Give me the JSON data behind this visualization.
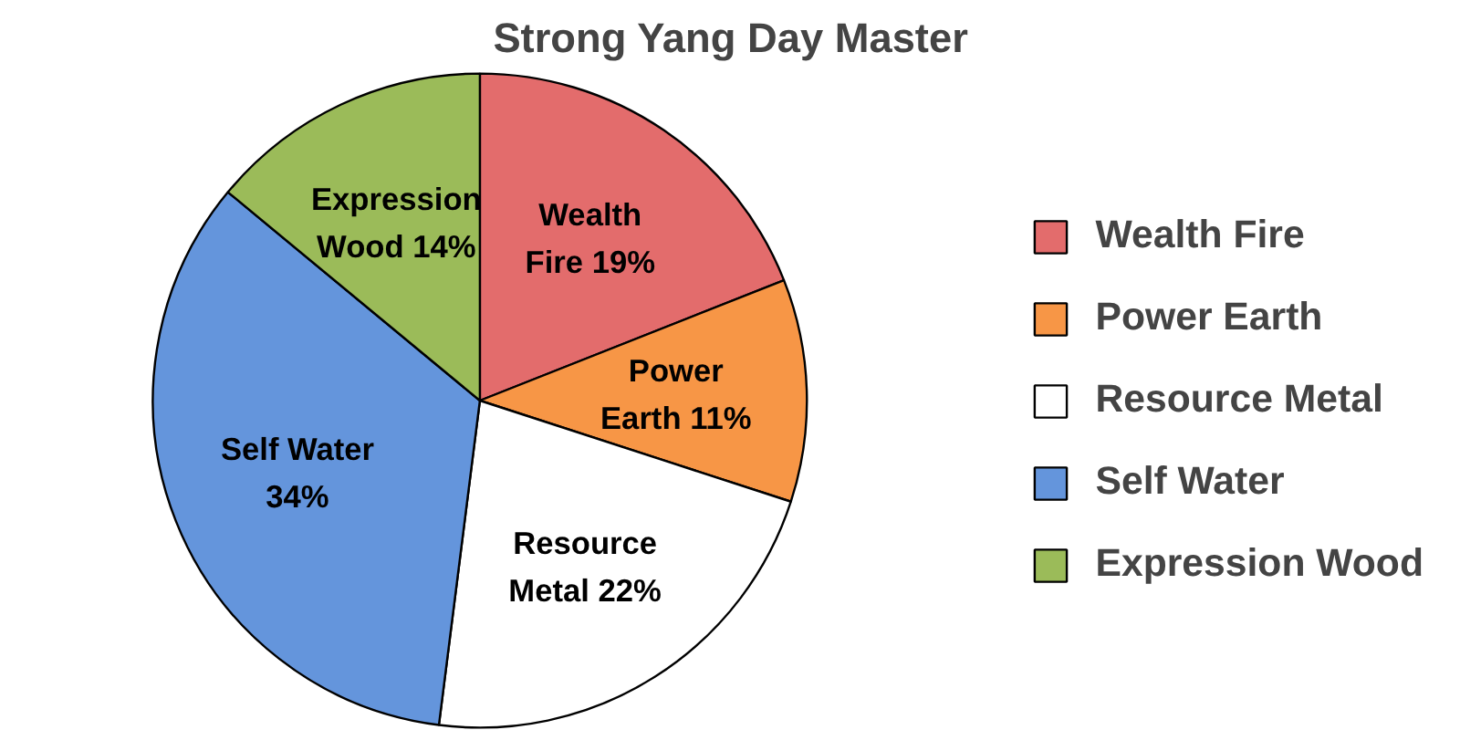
{
  "chart_data": {
    "type": "pie",
    "title": "Strong Yang Day Master",
    "categories": [
      "Wealth Fire",
      "Power Earth",
      "Resource Metal",
      "Self Water",
      "Expression Wood"
    ],
    "values": [
      19,
      11,
      22,
      34,
      14
    ],
    "colors": [
      "#e36c6c",
      "#f79646",
      "#ffffff",
      "#6495dc",
      "#9bbb59"
    ],
    "value_labels": [
      "Wealth\nFire 19%",
      "Power\nEarth 11%",
      "Resource\nMetal 22%",
      "Self Water\n34%",
      "Expression\nWood 14%"
    ],
    "legend": "right"
  }
}
